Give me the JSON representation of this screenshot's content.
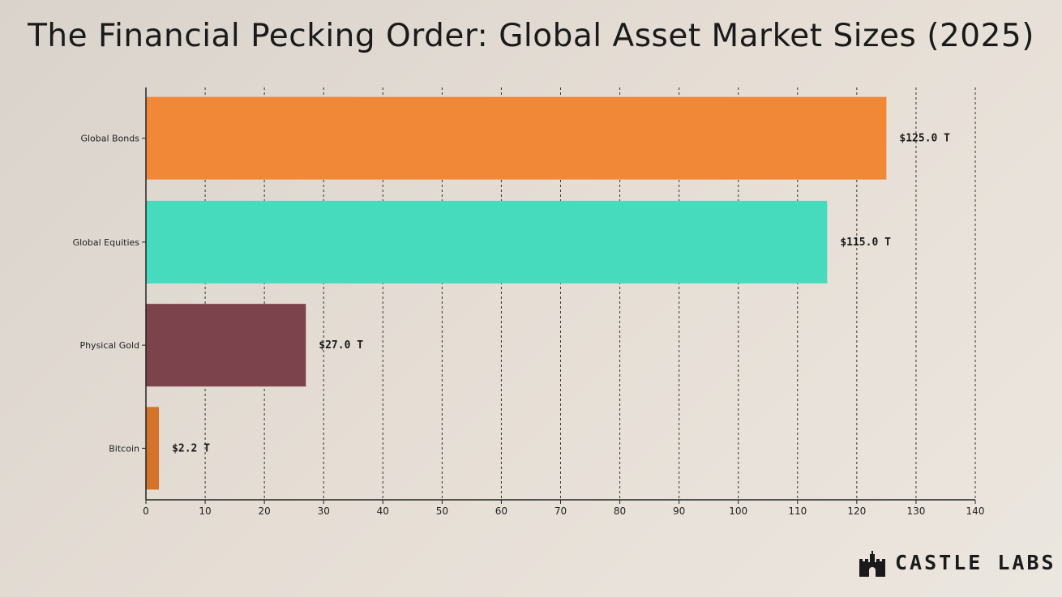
{
  "chart_data": {
    "type": "bar",
    "orientation": "horizontal",
    "title": "The Financial Pecking Order: Global Asset Market Sizes (2025)",
    "xlabel": "",
    "ylabel": "",
    "categories": [
      "Global Bonds",
      "Global Equities",
      "Physical Gold",
      "Bitcoin"
    ],
    "values": [
      125.0,
      115.0,
      27.0,
      2.2
    ],
    "data_labels": [
      "$125.0 T",
      "$115.0 T",
      "$27.0 T",
      "$2.2 T"
    ],
    "colors": [
      "#f08838",
      "#46dbbd",
      "#7d434c",
      "#d4732c"
    ],
    "xlim": [
      0,
      140
    ],
    "xticks": [
      0,
      10,
      20,
      30,
      40,
      50,
      60,
      70,
      80,
      90,
      100,
      110,
      120,
      130,
      140
    ],
    "grid": "vertical dashed"
  },
  "brand": {
    "name": "CASTLE LABS",
    "icon": "castle-icon"
  }
}
